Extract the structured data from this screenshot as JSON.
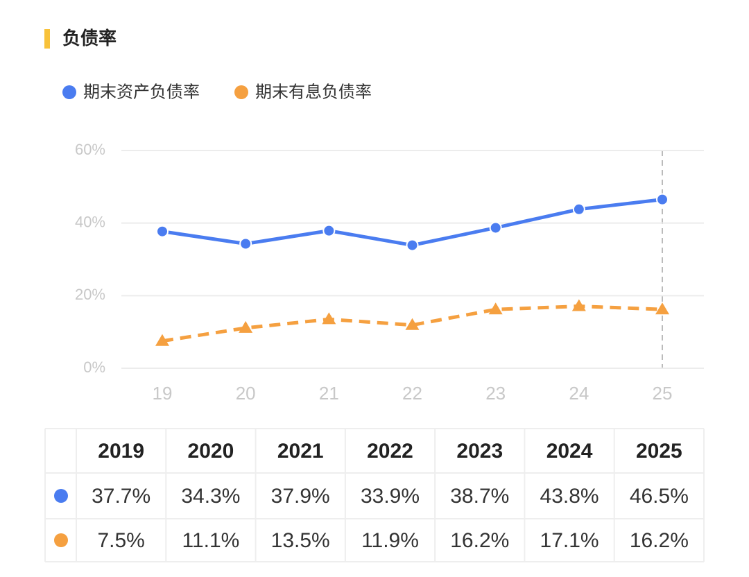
{
  "chart_data": {
    "type": "line",
    "title": "负债率",
    "categories": [
      "19",
      "20",
      "21",
      "22",
      "23",
      "24",
      "25"
    ],
    "series": [
      {
        "name": "期末资产负债率",
        "color": "#4a7cf0",
        "marker": "circle",
        "dash": false,
        "values": [
          37.7,
          34.3,
          37.9,
          33.9,
          38.7,
          43.8,
          46.5
        ],
        "value_labels": [
          "37.7%",
          "34.3%",
          "37.9%",
          "33.9%",
          "38.7%",
          "43.8%",
          "46.5%"
        ]
      },
      {
        "name": "期末有息负债率",
        "color": "#f5a040",
        "marker": "triangle",
        "dash": true,
        "values": [
          7.5,
          11.1,
          13.5,
          11.9,
          16.2,
          17.1,
          16.2
        ],
        "value_labels": [
          "7.5%",
          "11.1%",
          "13.5%",
          "11.9%",
          "16.2%",
          "17.1%",
          "16.2%"
        ]
      }
    ],
    "ylim": [
      0,
      60
    ],
    "yticks": [
      {
        "value": 0,
        "label": "0%"
      },
      {
        "value": 20,
        "label": "20%"
      },
      {
        "value": 40,
        "label": "40%"
      },
      {
        "value": 60,
        "label": "60%"
      }
    ],
    "grid": true
  },
  "table": {
    "columns": [
      "2019",
      "2020",
      "2021",
      "2022",
      "2023",
      "2024",
      "2025"
    ]
  }
}
